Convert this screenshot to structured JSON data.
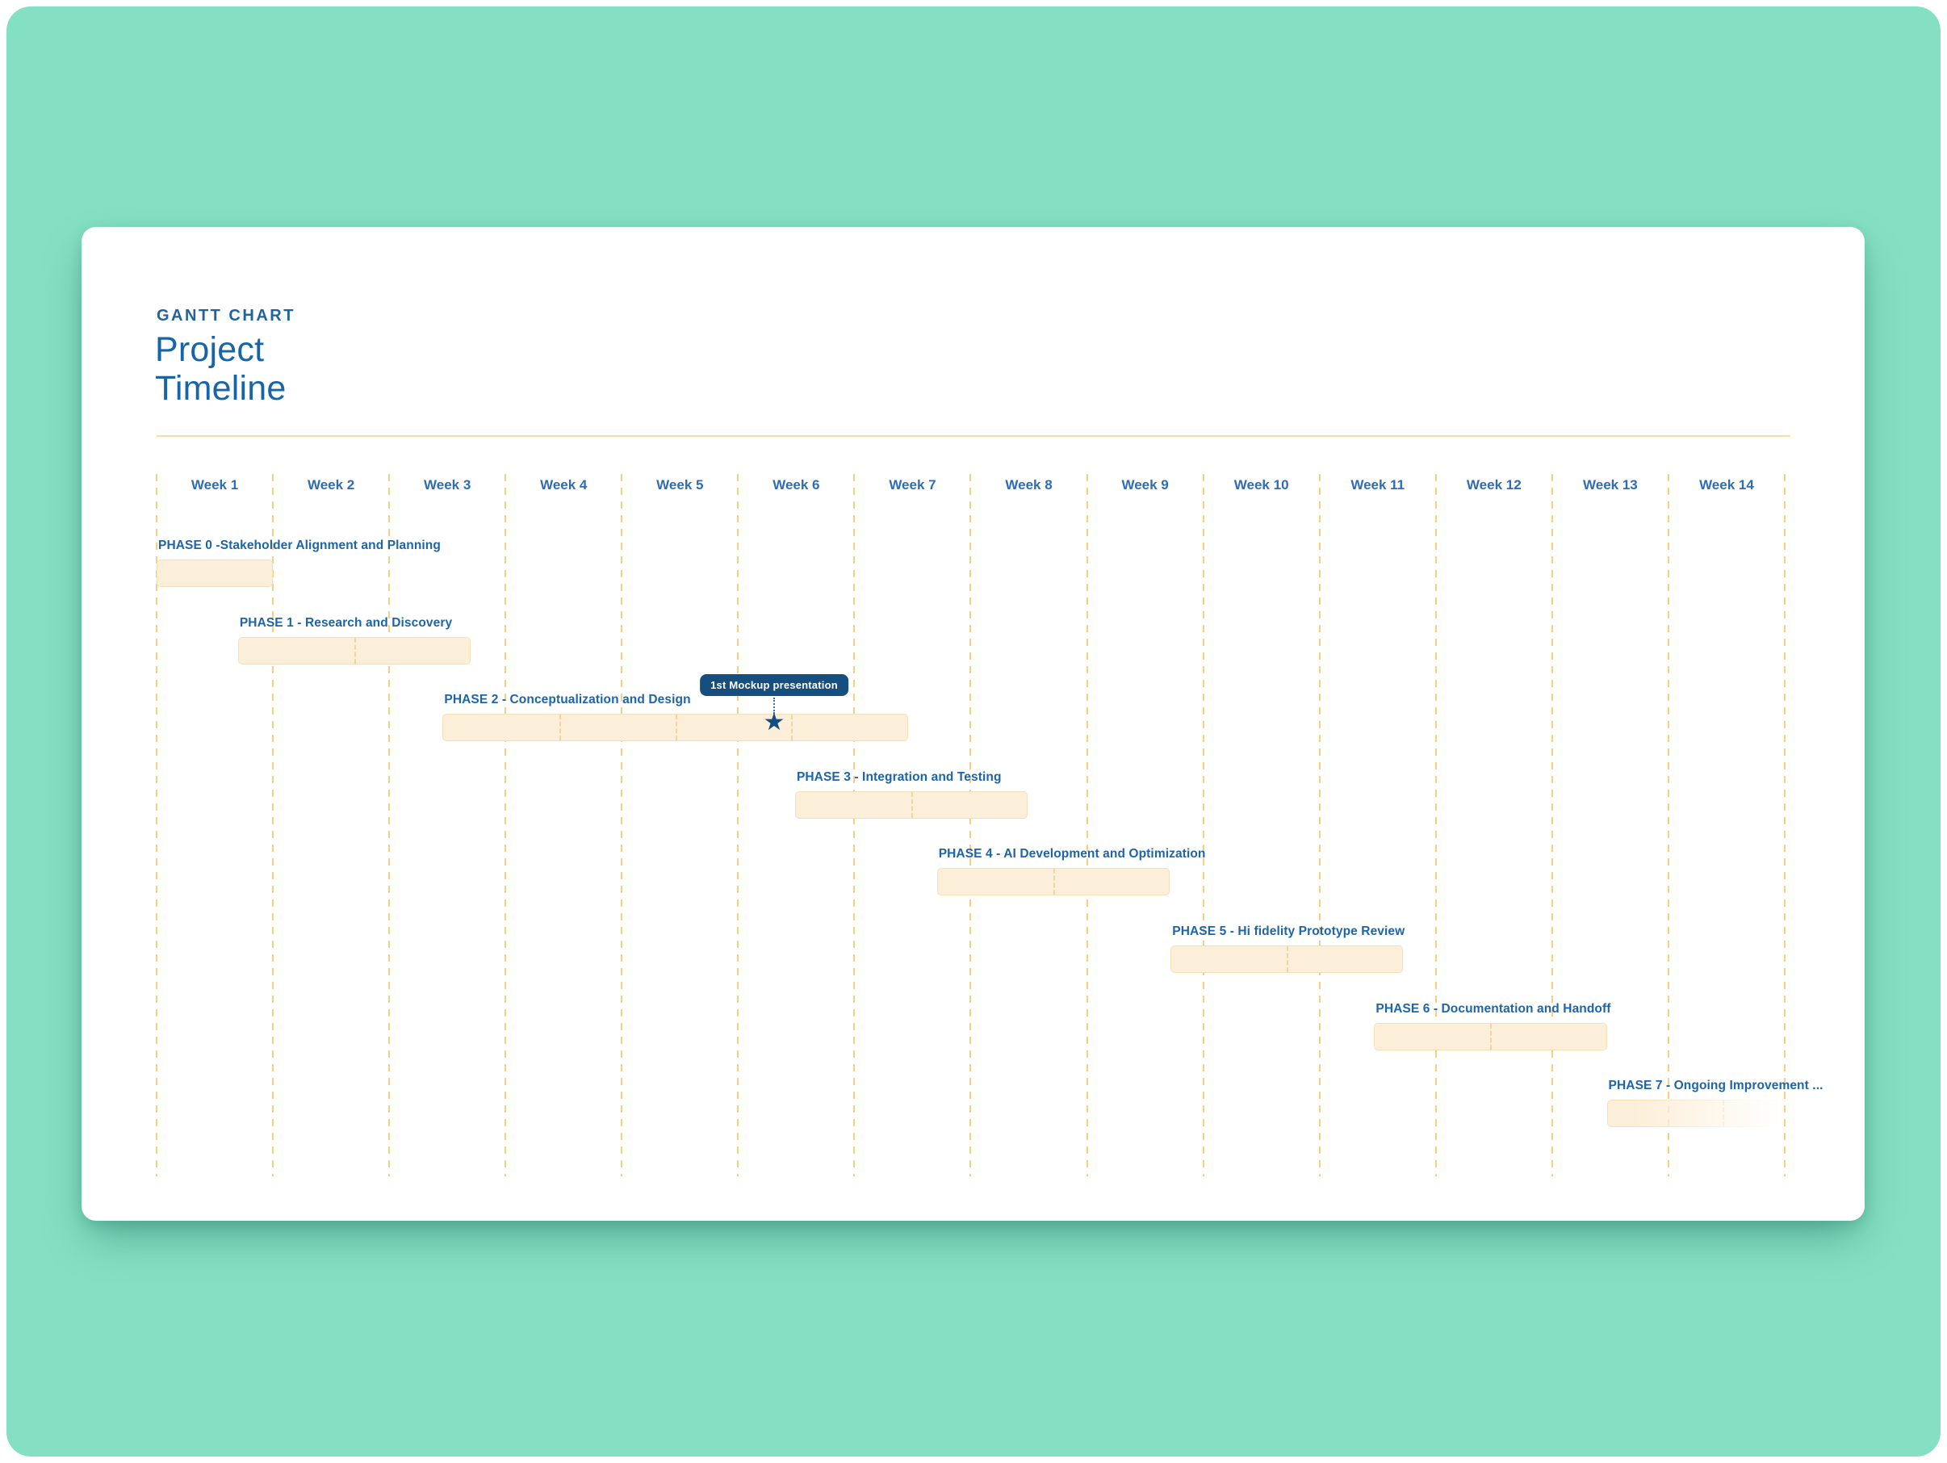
{
  "app": {
    "eyebrow": "GANTT CHART",
    "title_lines": [
      "Project",
      "Timeline"
    ]
  },
  "colors": {
    "page_background": "#FFFFFF",
    "canvas_teal": "#85E0C3",
    "card_white": "#FFFFFF",
    "eyebrow_blue": "#22639B",
    "title_blue": "#1765A6",
    "week_label_blue": "#2E6CB4",
    "phase_label_blue": "#1D64A9",
    "separator_orange": "#F6DCA6",
    "gridline_orange": "#FACD85",
    "bar_fill_cream": "#FCEFD9",
    "bar_border_tan": "#F5DFBA",
    "milestone_navy": "#174E80",
    "tooltip_text": "#FFFFFF"
  },
  "chart_data": {
    "type": "bar",
    "subtype": "gantt",
    "title": "Project Timeline",
    "x_axis": {
      "unit": "weeks",
      "range_weeks": [
        0,
        14
      ],
      "gridlines": "dashed-vertical",
      "tick_labels": [
        "Week 1",
        "Week 2",
        "Week 3",
        "Week 4",
        "Week 5",
        "Week 6",
        "Week 7",
        "Week 8",
        "Week 9",
        "Week 10",
        "Week 11",
        "Week 12",
        "Week 13",
        "Week 14"
      ]
    },
    "phases": [
      {
        "label": "PHASE 0 -Stakeholder Alignment and Planning",
        "start_week": 0.0,
        "end_week": 1.0,
        "segments": 1
      },
      {
        "label": "PHASE 1 - Research and Discovery",
        "start_week": 0.7,
        "end_week": 2.7,
        "segments": 2
      },
      {
        "label": "PHASE 2 - Conceptualization and Design",
        "start_week": 2.46,
        "end_week": 6.46,
        "segments": 4,
        "milestone": {
          "label": "1st Mockup presentation",
          "week": 5.31,
          "marker": "star-icon"
        }
      },
      {
        "label": "PHASE 3 - Integration and Testing",
        "start_week": 5.49,
        "end_week": 7.49,
        "segments": 2
      },
      {
        "label": "PHASE 4 - AI Development and Optimization",
        "start_week": 6.71,
        "end_week": 8.71,
        "segments": 2
      },
      {
        "label": "PHASE 5 - Hi fidelity Prototype Review",
        "start_week": 8.72,
        "end_week": 10.72,
        "segments": 2
      },
      {
        "label": "PHASE 6 - Documentation and Handoff",
        "start_week": 10.47,
        "end_week": 12.47,
        "segments": 2
      },
      {
        "label": "PHASE 7 - Ongoing Improvement ...",
        "start_week": 12.47,
        "end_week": 14.0,
        "segments": 2,
        "fade_right": true
      }
    ]
  }
}
